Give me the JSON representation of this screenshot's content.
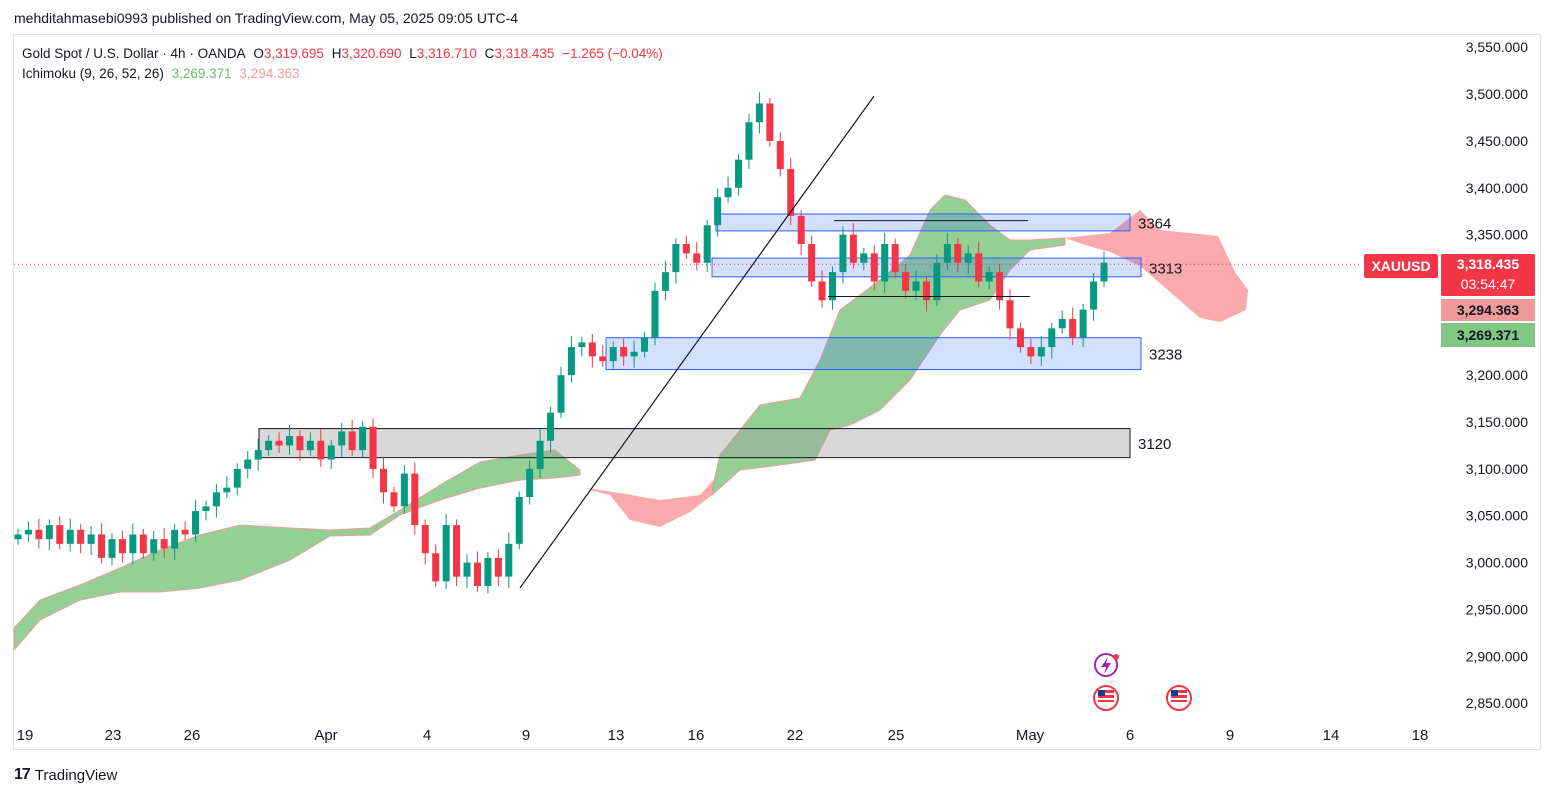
{
  "header": {
    "publisher": "mehditahmasebi0993 published on TradingView.com, May 05, 2025 09:05 UTC-4"
  },
  "legend": {
    "symbol": "Gold Spot / U.S. Dollar · 4h · OANDA",
    "o_label": "O",
    "o_value": "3,319.695",
    "h_label": "H",
    "h_value": "3,320.690",
    "l_label": "L",
    "l_value": "3,316.710",
    "c_label": "C",
    "c_value": "3,318.435",
    "change": "−1.265 (−0.04%)",
    "ichimoku_label": "Ichimoku (9, 26, 52, 26)",
    "ichimoku_a": "3,269.371",
    "ichimoku_b": "3,294.363"
  },
  "price_badges": {
    "ticker": "XAUUSD",
    "last": "3,318.435",
    "countdown": "03:54:47",
    "span_b": "3,294.363",
    "span_a": "3,269.371"
  },
  "branding": {
    "logo_text": "TradingView",
    "logo_mark": "17"
  },
  "icons": [
    "lightning-event-icon",
    "us-flag-event-icon",
    "us-flag-event-icon"
  ],
  "colors": {
    "up": "#089981",
    "down": "#f23645",
    "cloud_bull": "#4caf50",
    "cloud_bear": "#f77c80",
    "zone_blue": "#2962ff",
    "zone_gray": "#9e9e9e"
  },
  "chart_data": {
    "type": "candlestick",
    "title": "Gold Spot / U.S. Dollar · 4h · OANDA",
    "xlabel": "",
    "ylabel": "",
    "ylim": [
      2830,
      3565
    ],
    "y_ticks": [
      "3,550.000",
      "3,500.000",
      "3,450.000",
      "3,400.000",
      "3,350.000",
      "3,300.000",
      "3,250.000",
      "3,200.000",
      "3,150.000",
      "3,100.000",
      "3,050.000",
      "3,000.000",
      "2,950.000",
      "2,900.000",
      "2,850.000"
    ],
    "x_ticks": [
      "19",
      "23",
      "26",
      "Apr",
      "4",
      "9",
      "13",
      "16",
      "22",
      "25",
      "May",
      "6",
      "9",
      "14",
      "18"
    ],
    "price_path": [
      3030,
      3035,
      3025,
      3040,
      3020,
      3035,
      3020,
      3030,
      3005,
      3025,
      3010,
      3030,
      3010,
      3025,
      3015,
      3035,
      3030,
      3055,
      3060,
      3075,
      3080,
      3100,
      3110,
      3120,
      3130,
      3125,
      3135,
      3120,
      3130,
      3110,
      3125,
      3140,
      3120,
      3145,
      3100,
      3075,
      3060,
      3095,
      3040,
      3010,
      2980,
      3040,
      2985,
      3000,
      2975,
      3005,
      2985,
      3020,
      3070,
      3100,
      3130,
      3160,
      3200,
      3230,
      3235,
      3220,
      3215,
      3230,
      3220,
      3225,
      3240,
      3290,
      3310,
      3340,
      3330,
      3320,
      3360,
      3390,
      3400,
      3430,
      3470,
      3490,
      3450,
      3420,
      3370,
      3340,
      3300,
      3280,
      3310,
      3350,
      3320,
      3330,
      3300,
      3340,
      3310,
      3290,
      3300,
      3280,
      3320,
      3340,
      3320,
      3330,
      3300,
      3310,
      3280,
      3250,
      3230,
      3220,
      3230,
      3250,
      3260,
      3240,
      3270,
      3300,
      3320
    ],
    "ichimoku_span_a_last": 3269.371,
    "ichimoku_span_b_last": 3294.363,
    "last_price": 3318.435,
    "zones": [
      {
        "label": "3364",
        "low": 3354,
        "high": 3372,
        "color": "blue"
      },
      {
        "label": "3313",
        "low": 3305,
        "high": 3325,
        "color": "blue"
      },
      {
        "label": "3238",
        "low": 3206,
        "high": 3240,
        "color": "blue"
      },
      {
        "label": "3120",
        "low": 3112,
        "high": 3143,
        "color": "gray"
      }
    ],
    "horizontal_lines": [
      {
        "y": 3365
      },
      {
        "y": 3284
      }
    ],
    "trendline": {
      "from_x": "9",
      "from_y": 2973,
      "to_x": "22",
      "to_y": 3500
    }
  }
}
